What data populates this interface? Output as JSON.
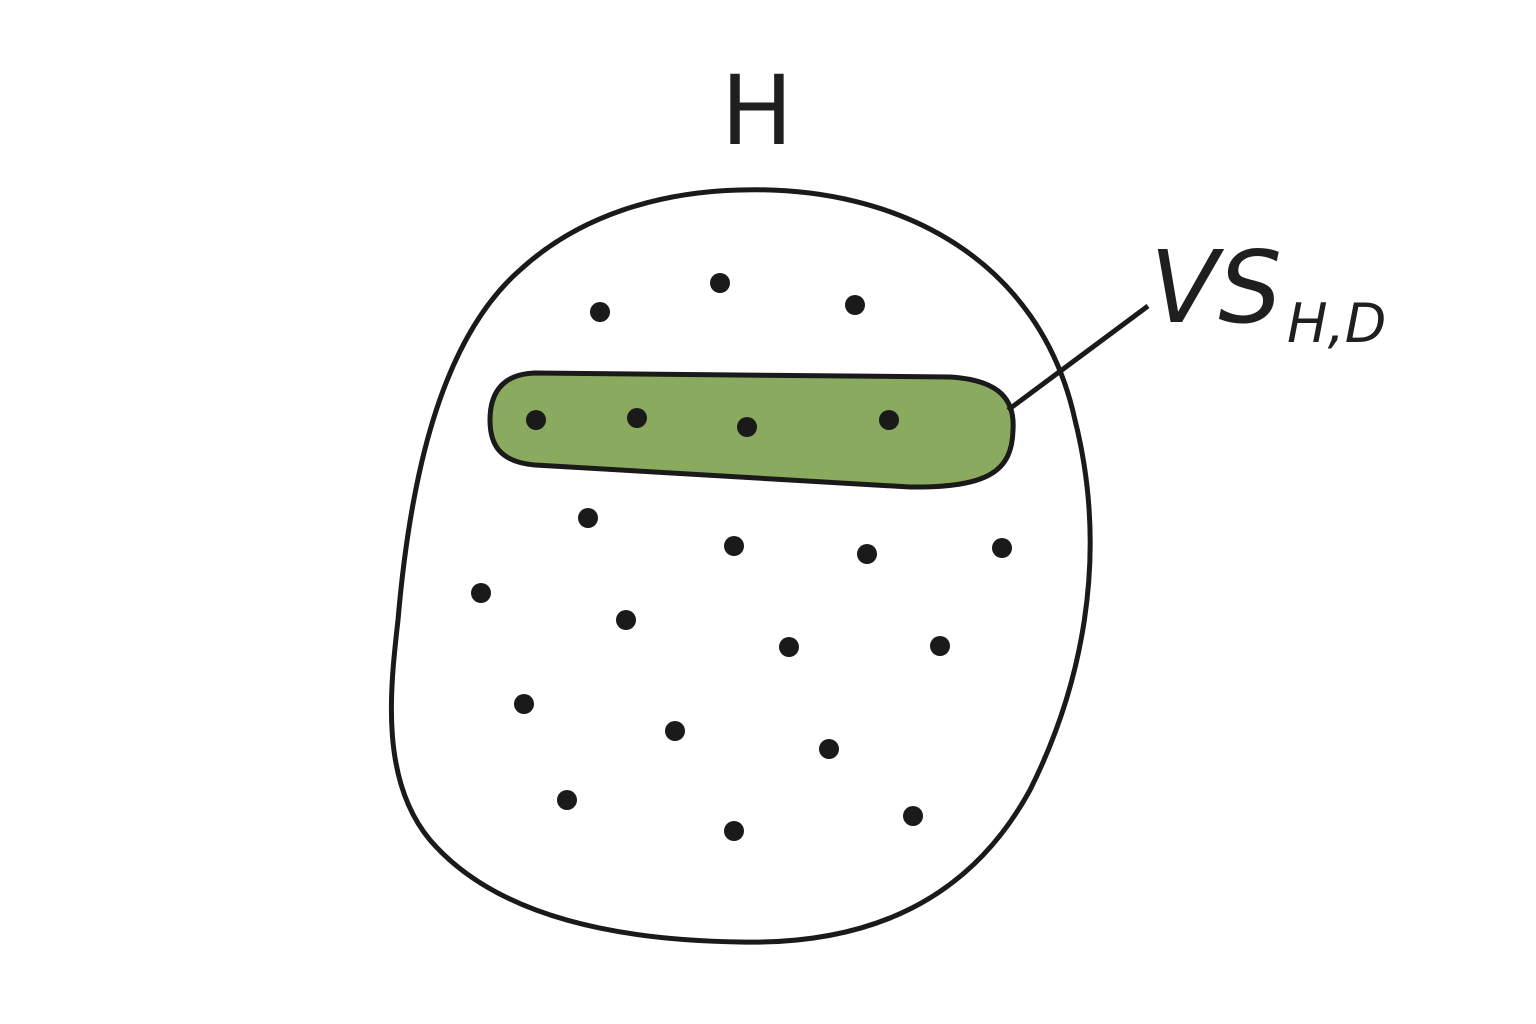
{
  "diagram": {
    "set_label": "H",
    "subset_label_main": "VS",
    "subset_label_sub": "H,D",
    "colors": {
      "outline": "#1a1a1a",
      "subset_fill": "#8aab5f",
      "point": "#1a1a1a",
      "background": "#ffffff"
    }
  }
}
